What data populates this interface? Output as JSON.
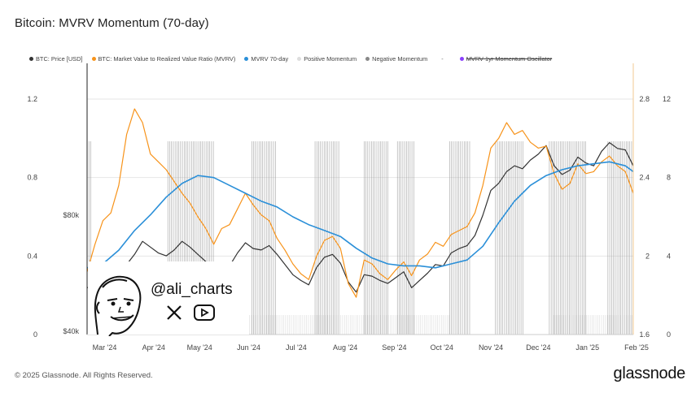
{
  "title": "Bitcoin: MVRV Momentum (70-day)",
  "legend": {
    "items": [
      {
        "label": "BTC: Price [USD]",
        "color": "#333333"
      },
      {
        "label": "BTC: Market Value to Realized Value Ratio (MVRV)",
        "color": "#f7931a"
      },
      {
        "label": "MVRV 70-day",
        "color": "#2a8fd8"
      },
      {
        "label": "Positive Momentum",
        "color": "#dddddd"
      },
      {
        "label": "Negative Momentum",
        "color": "#888888"
      },
      {
        "label": "MVRV 1yr Momentum Oscillator",
        "color": "#8a3ffc"
      }
    ],
    "dash": "-"
  },
  "overlay": {
    "handle": "@ali_charts",
    "icons": [
      "x-logo-icon",
      "youtube-icon"
    ]
  },
  "footer": {
    "copyright": "© 2025 Glassnode. All Rights Reserved.",
    "brand": "glassnode"
  },
  "chart_data": {
    "type": "line",
    "x_axis": {
      "ticks": [
        "Mar '24",
        "Apr '24",
        "May '24",
        "Jun '24",
        "Jul '24",
        "Aug '24",
        "Sep '24",
        "Oct '24",
        "Nov '24",
        "Dec '24",
        "Jan '25",
        "Feb '25"
      ]
    },
    "left_axis": {
      "ticks": [
        "0",
        "0.4",
        "0.8",
        "1.2"
      ],
      "range": [
        0,
        1.2
      ]
    },
    "price_axis": {
      "ticks": [
        "$40k",
        "$80k"
      ]
    },
    "right_axis_1": {
      "ticks": [
        "1.6",
        "2",
        "2.4",
        "2.8"
      ],
      "range": [
        1.6,
        2.8
      ]
    },
    "right_axis_2": {
      "ticks": [
        "0",
        "4",
        "8",
        "12"
      ],
      "range": [
        0,
        12
      ]
    },
    "x_days": [
      0,
      345
    ],
    "series": [
      {
        "name": "BTC: Price [USD]",
        "color": "#333333",
        "points": [
          [
            0,
            55000
          ],
          [
            5,
            56000
          ],
          [
            10,
            58000
          ],
          [
            15,
            61000
          ],
          [
            20,
            63500
          ],
          [
            25,
            63000
          ],
          [
            30,
            66500
          ],
          [
            35,
            71000
          ],
          [
            40,
            69000
          ],
          [
            45,
            67000
          ],
          [
            50,
            66000
          ],
          [
            55,
            68000
          ],
          [
            60,
            71000
          ],
          [
            65,
            69000
          ],
          [
            70,
            66500
          ],
          [
            75,
            64000
          ],
          [
            80,
            61000
          ],
          [
            85,
            63000
          ],
          [
            90,
            62500
          ],
          [
            95,
            67000
          ],
          [
            100,
            70500
          ],
          [
            105,
            68500
          ],
          [
            110,
            68000
          ],
          [
            115,
            69500
          ],
          [
            120,
            66500
          ],
          [
            125,
            63000
          ],
          [
            130,
            59500
          ],
          [
            135,
            57500
          ],
          [
            140,
            56000
          ],
          [
            145,
            62000
          ],
          [
            150,
            65500
          ],
          [
            155,
            66500
          ],
          [
            160,
            63500
          ],
          [
            165,
            57000
          ],
          [
            170,
            53500
          ],
          [
            175,
            59500
          ],
          [
            180,
            59000
          ],
          [
            185,
            57500
          ],
          [
            190,
            56500
          ],
          [
            195,
            58500
          ],
          [
            200,
            60500
          ],
          [
            205,
            55000
          ],
          [
            210,
            57500
          ],
          [
            215,
            60000
          ],
          [
            220,
            63000
          ],
          [
            225,
            62500
          ],
          [
            230,
            67000
          ],
          [
            235,
            68500
          ],
          [
            240,
            69500
          ],
          [
            245,
            73000
          ],
          [
            250,
            80000
          ],
          [
            255,
            88500
          ],
          [
            260,
            91000
          ],
          [
            265,
            95000
          ],
          [
            270,
            97000
          ],
          [
            275,
            96000
          ],
          [
            280,
            99000
          ],
          [
            285,
            101000
          ],
          [
            290,
            104000
          ],
          [
            295,
            97000
          ],
          [
            300,
            94000
          ],
          [
            305,
            95500
          ],
          [
            310,
            100000
          ],
          [
            315,
            98000
          ],
          [
            320,
            97000
          ],
          [
            325,
            102000
          ],
          [
            330,
            105000
          ],
          [
            335,
            103000
          ],
          [
            340,
            102500
          ],
          [
            345,
            97000
          ]
        ]
      },
      {
        "name": "BTC: Market Value to Realized Value Ratio (MVRV)",
        "color": "#f7931a",
        "points": [
          [
            0,
            1.92
          ],
          [
            5,
            2.06
          ],
          [
            10,
            2.18
          ],
          [
            15,
            2.22
          ],
          [
            20,
            2.36
          ],
          [
            25,
            2.62
          ],
          [
            30,
            2.75
          ],
          [
            35,
            2.68
          ],
          [
            40,
            2.52
          ],
          [
            45,
            2.48
          ],
          [
            50,
            2.44
          ],
          [
            55,
            2.38
          ],
          [
            60,
            2.32
          ],
          [
            65,
            2.27
          ],
          [
            70,
            2.2
          ],
          [
            75,
            2.14
          ],
          [
            80,
            2.06
          ],
          [
            85,
            2.14
          ],
          [
            90,
            2.16
          ],
          [
            95,
            2.24
          ],
          [
            100,
            2.32
          ],
          [
            105,
            2.26
          ],
          [
            110,
            2.21
          ],
          [
            115,
            2.18
          ],
          [
            120,
            2.09
          ],
          [
            125,
            2.03
          ],
          [
            130,
            1.96
          ],
          [
            135,
            1.91
          ],
          [
            140,
            1.88
          ],
          [
            145,
            2.0
          ],
          [
            150,
            2.08
          ],
          [
            155,
            2.1
          ],
          [
            160,
            2.04
          ],
          [
            165,
            1.86
          ],
          [
            170,
            1.79
          ],
          [
            175,
            1.98
          ],
          [
            180,
            1.96
          ],
          [
            185,
            1.91
          ],
          [
            190,
            1.88
          ],
          [
            195,
            1.93
          ],
          [
            200,
            1.97
          ],
          [
            205,
            1.9
          ],
          [
            210,
            1.98
          ],
          [
            215,
            2.01
          ],
          [
            220,
            2.07
          ],
          [
            225,
            2.05
          ],
          [
            230,
            2.11
          ],
          [
            235,
            2.13
          ],
          [
            240,
            2.15
          ],
          [
            245,
            2.22
          ],
          [
            250,
            2.36
          ],
          [
            255,
            2.55
          ],
          [
            260,
            2.6
          ],
          [
            265,
            2.68
          ],
          [
            270,
            2.62
          ],
          [
            275,
            2.64
          ],
          [
            280,
            2.58
          ],
          [
            285,
            2.55
          ],
          [
            290,
            2.56
          ],
          [
            295,
            2.42
          ],
          [
            300,
            2.34
          ],
          [
            305,
            2.37
          ],
          [
            310,
            2.47
          ],
          [
            315,
            2.42
          ],
          [
            320,
            2.43
          ],
          [
            325,
            2.48
          ],
          [
            330,
            2.51
          ],
          [
            335,
            2.46
          ],
          [
            340,
            2.43
          ],
          [
            345,
            2.32
          ]
        ]
      },
      {
        "name": "MVRV 70-day",
        "color": "#2a8fd8",
        "points": [
          [
            0,
            1.94
          ],
          [
            10,
            1.96
          ],
          [
            20,
            2.03
          ],
          [
            30,
            2.13
          ],
          [
            40,
            2.21
          ],
          [
            50,
            2.3
          ],
          [
            60,
            2.37
          ],
          [
            70,
            2.41
          ],
          [
            80,
            2.4
          ],
          [
            90,
            2.36
          ],
          [
            100,
            2.32
          ],
          [
            110,
            2.28
          ],
          [
            120,
            2.25
          ],
          [
            130,
            2.2
          ],
          [
            140,
            2.16
          ],
          [
            150,
            2.13
          ],
          [
            160,
            2.1
          ],
          [
            170,
            2.04
          ],
          [
            180,
            1.99
          ],
          [
            190,
            1.96
          ],
          [
            200,
            1.95
          ],
          [
            210,
            1.95
          ],
          [
            220,
            1.94
          ],
          [
            230,
            1.96
          ],
          [
            240,
            1.98
          ],
          [
            250,
            2.05
          ],
          [
            260,
            2.17
          ],
          [
            270,
            2.28
          ],
          [
            280,
            2.36
          ],
          [
            290,
            2.41
          ],
          [
            300,
            2.44
          ],
          [
            310,
            2.46
          ],
          [
            320,
            2.47
          ],
          [
            330,
            2.48
          ],
          [
            340,
            2.46
          ],
          [
            345,
            2.43
          ]
        ]
      }
    ],
    "momentum_bands": {
      "dark": [
        [
          0,
          3
        ],
        [
          51,
          80
        ],
        [
          104,
          120
        ],
        [
          144,
          160
        ],
        [
          175,
          190
        ],
        [
          196,
          207
        ],
        [
          229,
          242
        ],
        [
          258,
          276
        ],
        [
          292,
          316
        ],
        [
          329,
          345
        ]
      ],
      "light": [
        [
          99,
          229
        ],
        [
          295,
          345
        ]
      ]
    }
  }
}
